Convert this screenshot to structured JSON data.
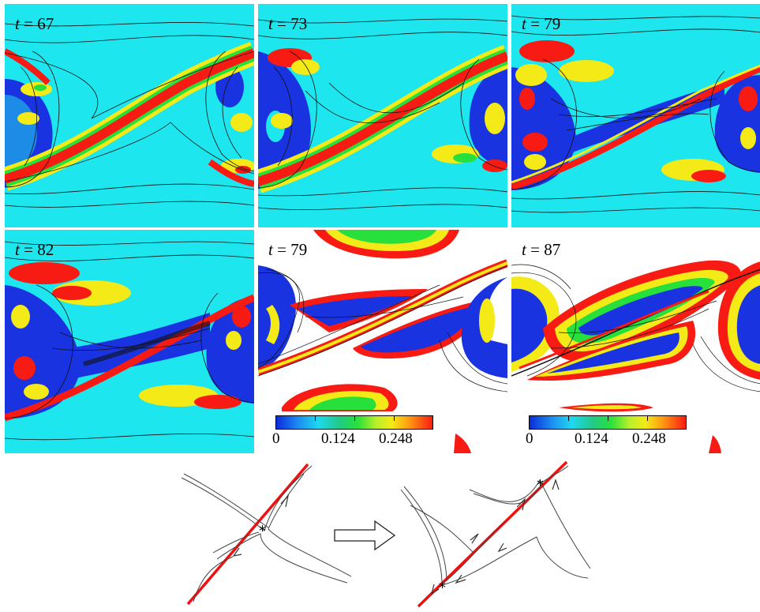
{
  "panels": [
    {
      "label_var": "t",
      "label_eq": " = ",
      "label_value": "67",
      "style": "background-cyan"
    },
    {
      "label_var": "t",
      "label_eq": " = ",
      "label_value": "73",
      "style": "background-cyan"
    },
    {
      "label_var": "t",
      "label_eq": " = ",
      "label_value": "79",
      "style": "background-cyan"
    },
    {
      "label_var": "t",
      "label_eq": " = ",
      "label_value": "82",
      "style": "background-cyan"
    },
    {
      "label_var": "t",
      "label_eq": " = ",
      "label_value": "79",
      "style": "background-white"
    },
    {
      "label_var": "t",
      "label_eq": " = ",
      "label_value": "87",
      "style": "background-white"
    }
  ],
  "colorbar": {
    "ticks": [
      "0",
      "0.124",
      "0.248"
    ],
    "range": [
      0,
      0.248
    ],
    "colormap": [
      "#0a2bd8",
      "#1d8cf2",
      "#1fd8f0",
      "#22c98a",
      "#28e03c",
      "#b9ef2a",
      "#f4ea18",
      "#ff9a12",
      "#f81b13"
    ]
  },
  "colors": {
    "cyan_background": "#1ee6ee",
    "blue_core": "#1a33e0",
    "red_sheet": "#ee1010",
    "streamline": "#111111",
    "panel_border": "#9a9a9a"
  },
  "sketch": {
    "arrow_icon": "right-block-arrow-icon",
    "saddle_marker": "asterisk-icon"
  }
}
